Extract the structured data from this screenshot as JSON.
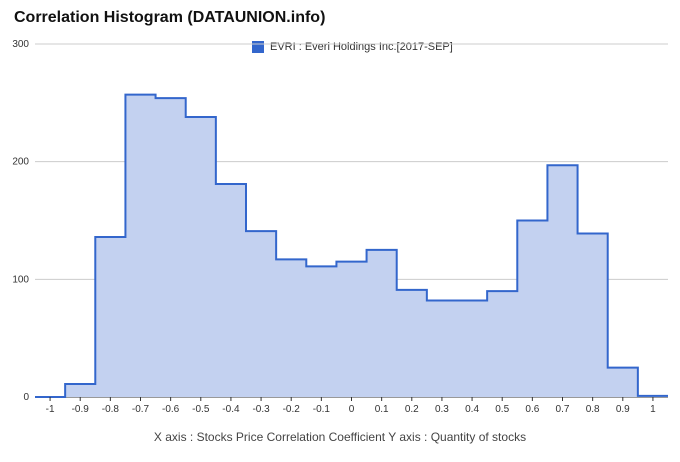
{
  "chart_data": {
    "type": "area",
    "title": "Correlation Histogram (DATAUNION.info)",
    "xlabel": "X axis : Stocks Price Correlation Coefficient  Y axis : Quantity of stocks",
    "ylabel": "",
    "x_ticks": [
      "-1",
      "-0.9",
      "-0.8",
      "-0.7",
      "-0.6",
      "-0.5",
      "-0.4",
      "-0.3",
      "-0.2",
      "-0.1",
      "0",
      "0.1",
      "0.2",
      "0.3",
      "0.4",
      "0.5",
      "0.6",
      "0.7",
      "0.8",
      "0.9",
      "1"
    ],
    "y_ticks": [
      "0",
      "100",
      "200",
      "300"
    ],
    "xlim": [
      -1.05,
      1.05
    ],
    "ylim": [
      0,
      300
    ],
    "grid": true,
    "legend_position": "top",
    "series": [
      {
        "name": "EVRI : Everi Holdings Inc.[2017-SEP]",
        "color": "#3366cc",
        "fill": "#c3d1f0",
        "x": [
          -1,
          -0.9,
          -0.8,
          -0.7,
          -0.6,
          -0.5,
          -0.4,
          -0.3,
          -0.2,
          -0.1,
          0,
          0.1,
          0.2,
          0.3,
          0.4,
          0.5,
          0.6,
          0.7,
          0.8,
          0.9,
          1
        ],
        "values": [
          0,
          11,
          136,
          257,
          254,
          238,
          181,
          141,
          117,
          111,
          115,
          125,
          91,
          82,
          82,
          90,
          150,
          197,
          139,
          25,
          1
        ]
      }
    ]
  }
}
